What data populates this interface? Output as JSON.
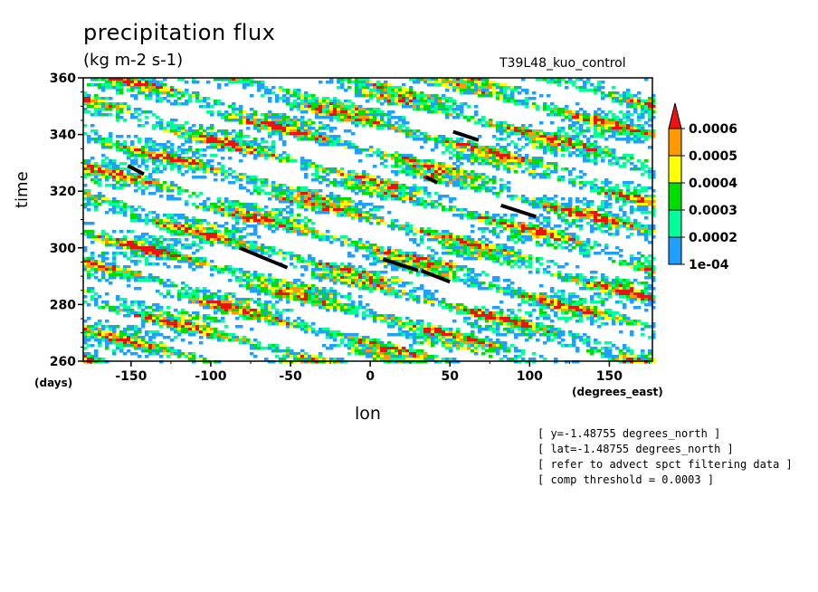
{
  "chart_data": {
    "type": "heatmap",
    "title": "precipitation flux",
    "units": "(kg m-2 s-1)",
    "run_label": "T39L48_kuo_control",
    "xlabel": "lon",
    "xunits": "(degrees_east)",
    "ylabel": "time",
    "yunits": "(days)",
    "xlim": [
      -180,
      177
    ],
    "ylim": [
      260,
      360
    ],
    "xticks": [
      -150,
      -100,
      -50,
      0,
      50,
      100,
      150
    ],
    "xtick_labels": [
      "-150",
      "-100",
      "-50",
      "0",
      "50",
      "100",
      "150"
    ],
    "yticks": [
      260,
      280,
      300,
      320,
      340,
      360
    ],
    "ytick_labels": [
      "260",
      "280",
      "300",
      "320",
      "340",
      "360"
    ],
    "colorbar": {
      "levels": [
        0.0001,
        0.0002,
        0.0003,
        0.0004,
        0.0005,
        0.0006
      ],
      "labels": [
        "1e-04",
        "0.0002",
        "0.0003",
        "0.0004",
        "0.0005",
        "0.0006"
      ],
      "colors": [
        "#ffffff",
        "#1fa0ff",
        "#00ff99",
        "#00dd00",
        "#ffff00",
        "#ff9900",
        "#ee1111"
      ]
    },
    "highlight_tracks": [
      {
        "lon": [
          -152,
          -142
        ],
        "time": [
          329,
          326
        ]
      },
      {
        "lon": [
          -82,
          -52
        ],
        "time": [
          300,
          293
        ]
      },
      {
        "lon": [
          8,
          30
        ],
        "time": [
          296,
          292
        ]
      },
      {
        "lon": [
          32,
          50
        ],
        "time": [
          292,
          288
        ]
      },
      {
        "lon": [
          35,
          42
        ],
        "time": [
          325,
          323
        ]
      },
      {
        "lon": [
          52,
          68
        ],
        "time": [
          341,
          338
        ]
      },
      {
        "lon": [
          82,
          104
        ],
        "time": [
          315,
          311
        ]
      }
    ]
  },
  "notes": [
    "[ y=-1.48755 degrees_north ]",
    "[ lat=-1.48755 degrees_north ]",
    "[ refer to advect spct filtering data ]",
    "[ comp threshold = 0.0003 ]"
  ]
}
